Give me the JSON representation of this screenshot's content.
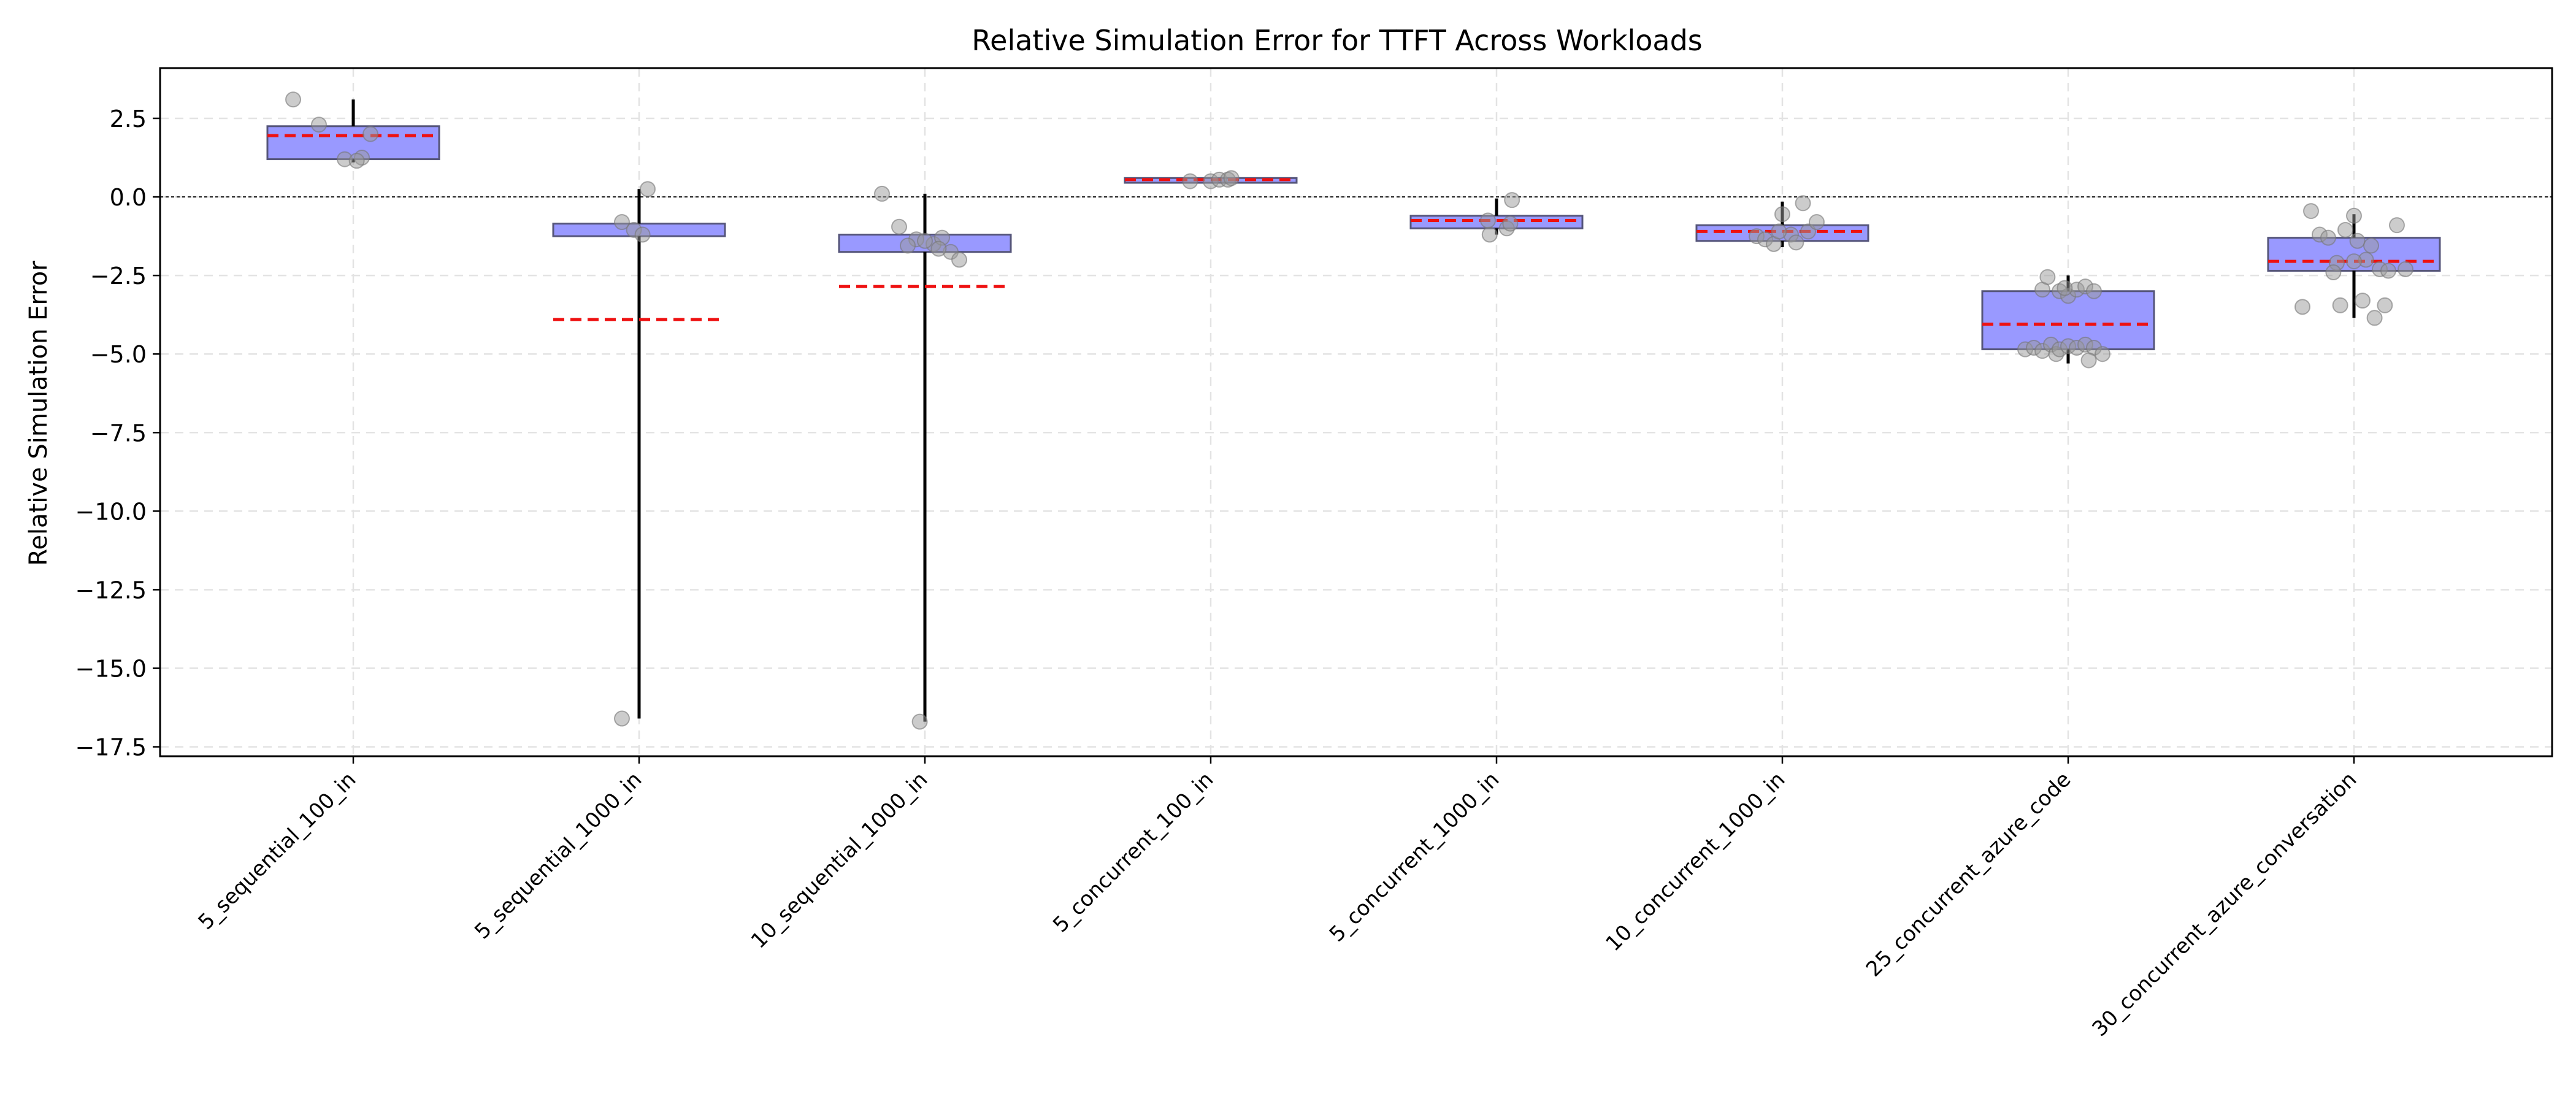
{
  "chart_data": {
    "type": "box",
    "title": "Relative Simulation Error for TTFT Across Workloads",
    "xlabel": "",
    "ylabel": "Relative Simulation Error",
    "ylim": [
      -17.8,
      4.1
    ],
    "yticks": [
      2.5,
      0.0,
      -2.5,
      -5.0,
      -7.5,
      -10.0,
      -12.5,
      -15.0,
      -17.5
    ],
    "ytick_labels": [
      "2.5",
      "0.0",
      "−2.5",
      "−5.0",
      "−7.5",
      "−10.0",
      "−12.5",
      "−15.0",
      "−17.5"
    ],
    "grid": true,
    "reference_line": 0.0,
    "colors": {
      "box_fill": "#9999ff",
      "box_edge": "#55557a",
      "mean_line": "#ee1111",
      "whisker": "#000000",
      "points": "#999999",
      "grid": "#e3e3e3"
    },
    "categories": [
      "5_sequential_100_in",
      "5_sequential_1000_in",
      "10_sequential_1000_in",
      "5_concurrent_100_in",
      "5_concurrent_1000_in",
      "10_concurrent_1000_in",
      "25_concurrent_azure_code",
      "30_concurrent_azure_conversation"
    ],
    "boxes": [
      {
        "q1": 1.2,
        "q3": 2.25,
        "median": 1.95,
        "whisker_low": 1.1,
        "whisker_high": 3.1,
        "mean": 1.95,
        "points": [
          [
            -0.35,
            3.1
          ],
          [
            -0.2,
            2.3
          ],
          [
            -0.05,
            1.2
          ],
          [
            0.05,
            1.25
          ],
          [
            0.1,
            2.0
          ],
          [
            0.02,
            1.15
          ]
        ]
      },
      {
        "q1": -1.25,
        "q3": -0.85,
        "median": -1.0,
        "whisker_low": -16.6,
        "whisker_high": 0.25,
        "mean": -3.9,
        "points": [
          [
            -0.1,
            -16.6
          ],
          [
            0.05,
            0.25
          ],
          [
            -0.1,
            -0.8
          ],
          [
            -0.03,
            -1.05
          ],
          [
            0.02,
            -1.2
          ]
        ]
      },
      {
        "q1": -1.75,
        "q3": -1.2,
        "median": -1.45,
        "whisker_low": -16.7,
        "whisker_high": 0.1,
        "mean": -2.85,
        "points": [
          [
            -0.25,
            0.1
          ],
          [
            -0.15,
            -0.95
          ],
          [
            -0.05,
            -1.35
          ],
          [
            0.05,
            -1.5
          ],
          [
            0.1,
            -1.3
          ],
          [
            0.15,
            -1.75
          ],
          [
            0.2,
            -2.0
          ],
          [
            -0.1,
            -1.55
          ],
          [
            0.0,
            -1.4
          ],
          [
            0.08,
            -1.65
          ],
          [
            -0.03,
            -16.7
          ]
        ]
      },
      {
        "q1": 0.45,
        "q3": 0.6,
        "median": 0.5,
        "whisker_low": 0.45,
        "whisker_high": 0.6,
        "mean": 0.55,
        "points": [
          [
            -0.12,
            0.5
          ],
          [
            0.0,
            0.5
          ],
          [
            0.05,
            0.55
          ],
          [
            0.1,
            0.55
          ],
          [
            0.12,
            0.6
          ]
        ]
      },
      {
        "q1": -1.0,
        "q3": -0.6,
        "median": -0.75,
        "whisker_low": -1.2,
        "whisker_high": -0.05,
        "mean": -0.75,
        "points": [
          [
            -0.04,
            -1.2
          ],
          [
            0.06,
            -1.0
          ],
          [
            -0.05,
            -0.75
          ],
          [
            0.08,
            -0.85
          ],
          [
            0.09,
            -0.1
          ]
        ]
      },
      {
        "q1": -1.4,
        "q3": -0.9,
        "median": -1.1,
        "whisker_low": -1.6,
        "whisker_high": -0.15,
        "mean": -1.1,
        "points": [
          [
            -0.15,
            -1.25
          ],
          [
            -0.1,
            -1.35
          ],
          [
            -0.05,
            -1.5
          ],
          [
            0.0,
            -0.55
          ],
          [
            0.05,
            -1.2
          ],
          [
            0.08,
            -1.45
          ],
          [
            0.12,
            -0.2
          ],
          [
            0.15,
            -1.1
          ],
          [
            0.2,
            -0.8
          ],
          [
            -0.02,
            -1.1
          ]
        ]
      },
      {
        "q1": -4.85,
        "q3": -3.0,
        "median": -4.75,
        "whisker_low": -5.3,
        "whisker_high": -2.5,
        "mean": -4.05,
        "points": [
          [
            -0.25,
            -4.85
          ],
          [
            -0.2,
            -4.8
          ],
          [
            -0.15,
            -4.9
          ],
          [
            -0.1,
            -4.7
          ],
          [
            -0.07,
            -5.0
          ],
          [
            -0.05,
            -4.85
          ],
          [
            0.0,
            -4.75
          ],
          [
            0.05,
            -4.8
          ],
          [
            0.1,
            -4.7
          ],
          [
            0.15,
            -4.8
          ],
          [
            0.2,
            -5.0
          ],
          [
            -0.15,
            -2.95
          ],
          [
            -0.12,
            -2.55
          ],
          [
            -0.05,
            -3.0
          ],
          [
            0.0,
            -3.15
          ],
          [
            0.05,
            -2.95
          ],
          [
            0.1,
            -2.85
          ],
          [
            0.15,
            -3.0
          ],
          [
            0.12,
            -5.2
          ],
          [
            -0.02,
            -2.9
          ]
        ]
      },
      {
        "q1": -2.35,
        "q3": -1.3,
        "median": -2.0,
        "whisker_low": -3.85,
        "whisker_high": -0.55,
        "mean": -2.05,
        "points": [
          [
            -0.3,
            -3.5
          ],
          [
            -0.25,
            -0.45
          ],
          [
            -0.2,
            -1.2
          ],
          [
            -0.15,
            -1.3
          ],
          [
            -0.1,
            -2.1
          ],
          [
            -0.08,
            -3.45
          ],
          [
            -0.05,
            -1.05
          ],
          [
            0.0,
            -0.6
          ],
          [
            0.02,
            -1.4
          ],
          [
            0.05,
            -3.3
          ],
          [
            0.07,
            -2.0
          ],
          [
            0.1,
            -1.55
          ],
          [
            0.12,
            -3.85
          ],
          [
            0.15,
            -2.3
          ],
          [
            0.18,
            -3.45
          ],
          [
            0.2,
            -2.35
          ],
          [
            0.25,
            -0.9
          ],
          [
            0.3,
            -2.3
          ],
          [
            -0.12,
            -2.4
          ],
          [
            0.0,
            -2.05
          ]
        ]
      }
    ]
  }
}
